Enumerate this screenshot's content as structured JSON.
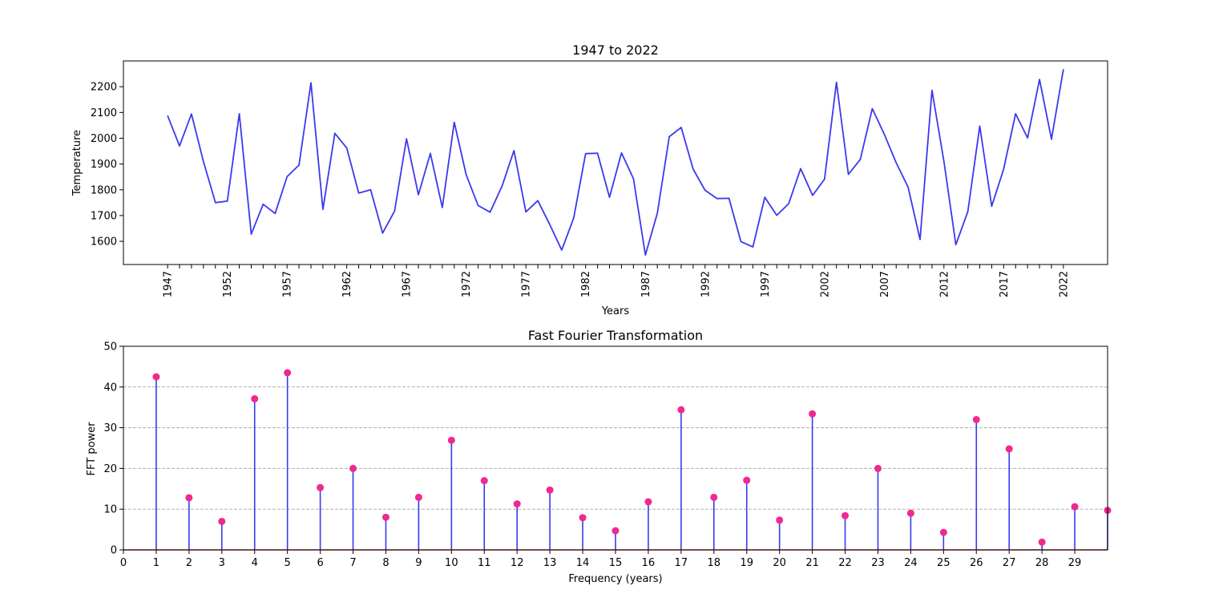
{
  "chart_data": [
    {
      "type": "line",
      "title": "1947 to 2022",
      "xlabel": "Years",
      "ylabel": "Temperature",
      "xlim": [
        1943.3,
        2025.7
      ],
      "ylim": [
        1510,
        2300
      ],
      "xticks_labeled": [
        "1947",
        "1952",
        "1957",
        "1962",
        "1967",
        "1972",
        "1977",
        "1982",
        "1987",
        "1992",
        "1997",
        "2002",
        "2007",
        "2012",
        "2017",
        "2022"
      ],
      "yticks": [
        "1600",
        "1700",
        "1800",
        "1900",
        "2000",
        "2100",
        "2200"
      ],
      "grid": false,
      "color": "#3939f0",
      "series": [
        {
          "x": [
            1947,
            1948,
            1949,
            1950,
            1951,
            1952,
            1953,
            1954,
            1955,
            1956,
            1957,
            1958,
            1959,
            1960,
            1961,
            1962,
            1963,
            1964,
            1965,
            1966,
            1967,
            1968,
            1969,
            1970,
            1971,
            1972,
            1973,
            1974,
            1975,
            1976,
            1977,
            1978,
            1979,
            1980,
            1981,
            1982,
            1983,
            1984,
            1985,
            1986,
            1987,
            1988,
            1989,
            1990,
            1991,
            1992,
            1993,
            1994,
            1995,
            1996,
            1997,
            1998,
            1999,
            2000,
            2001,
            2002,
            2003,
            2004,
            2005,
            2006,
            2007,
            2008,
            2009,
            2010,
            2011,
            2012,
            2013,
            2014,
            2015,
            2016,
            2017,
            2018,
            2019,
            2020,
            2021,
            2022
          ],
          "values": [
            2088,
            1970,
            2094,
            1910,
            1750,
            1756,
            2095,
            1628,
            1744,
            1708,
            1851,
            1896,
            2215,
            1724,
            2019,
            1962,
            1787,
            1800,
            1632,
            1717,
            1998,
            1781,
            1941,
            1731,
            2062,
            1858,
            1739,
            1713,
            1814,
            1952,
            1714,
            1758,
            1665,
            1566,
            1690,
            1940,
            1942,
            1771,
            1943,
            1843,
            1547,
            1709,
            2006,
            2042,
            1880,
            1798,
            1766,
            1767,
            1599,
            1578,
            1771,
            1701,
            1746,
            1882,
            1778,
            1841,
            2217,
            1860,
            1918,
            2115,
            2016,
            1905,
            1810,
            1607,
            2186,
            1910,
            1587,
            1715,
            2047,
            1736,
            1880,
            2095,
            2001,
            2228,
            1996,
            2268
          ]
        }
      ]
    },
    {
      "type": "stem",
      "title": "Fast Fourier Transformation",
      "xlabel": "Frequency (years)",
      "ylabel": "FFT power",
      "xlim": [
        0,
        30
      ],
      "ylim": [
        0,
        50
      ],
      "xticks": [
        "0",
        "1",
        "2",
        "3",
        "4",
        "5",
        "6",
        "7",
        "8",
        "9",
        "10",
        "11",
        "12",
        "13",
        "14",
        "15",
        "16",
        "17",
        "18",
        "19",
        "20",
        "21",
        "22",
        "23",
        "24",
        "25",
        "26",
        "27",
        "28",
        "29"
      ],
      "yticks": [
        "0",
        "10",
        "20",
        "30",
        "40",
        "50"
      ],
      "grid": "horizontal dashed",
      "stem_color": "#3939f0",
      "marker_color": "#f0288f",
      "baseline_color": "#c0392b",
      "series": [
        {
          "x": [
            1,
            2,
            3,
            4,
            5,
            6,
            7,
            8,
            9,
            10,
            11,
            12,
            13,
            14,
            15,
            16,
            17,
            18,
            19,
            20,
            21,
            22,
            23,
            24,
            25,
            26,
            27,
            28,
            29,
            30
          ],
          "values": [
            42.5,
            12.8,
            7.0,
            37.1,
            43.5,
            15.3,
            20.0,
            8.0,
            12.9,
            26.9,
            17.0,
            11.3,
            14.7,
            7.9,
            4.7,
            11.8,
            34.4,
            12.9,
            17.1,
            7.3,
            33.4,
            8.4,
            20.0,
            9.0,
            4.3,
            32.0,
            24.8,
            1.9,
            10.6,
            9.7
          ]
        }
      ]
    }
  ]
}
